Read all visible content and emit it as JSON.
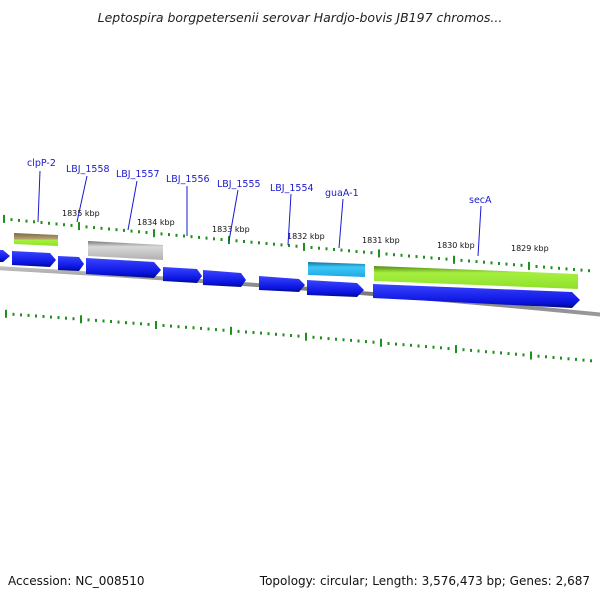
{
  "title": "Leptospira borgpetersenii serovar Hardjo-bovis JB197 chromos...",
  "footer": {
    "accession_label": "Accession:",
    "accession_value": "NC_008510",
    "topology_label": "Topology:",
    "topology_value": "circular;",
    "length_label": "Length:",
    "length_value": "3,576,473 bp;",
    "genes_label": "Genes:",
    "genes_value": "2,687"
  },
  "colors": {
    "backbone": "#7a7a7a",
    "tick": "#1f8f1f",
    "cds": "#0a14e0",
    "cds_dark": "#000a80",
    "gene_leader": "#1a1ad0",
    "clpP_top": "#b09050",
    "clpP_bottom": "#8fe02a",
    "grey_feature": "#b5b5b5",
    "guaA_feature": "#2ab8f0",
    "secA_feature": "#8fe02a"
  },
  "map": {
    "view_range_kbp": [
      1835.6,
      1828.6
    ],
    "kbp_ticks": [
      {
        "label": "1835 kbp",
        "kbp": 1835
      },
      {
        "label": "1834 kbp",
        "kbp": 1834
      },
      {
        "label": "1833 kbp",
        "kbp": 1833
      },
      {
        "label": "1832 kbp",
        "kbp": 1832
      },
      {
        "label": "1831 kbp",
        "kbp": 1831
      },
      {
        "label": "1830 kbp",
        "kbp": 1830
      },
      {
        "label": "1829 kbp",
        "kbp": 1829
      }
    ],
    "gene_labels": [
      {
        "label": "clpP-2"
      },
      {
        "label": "LBJ_1558"
      },
      {
        "label": "LBJ_1557"
      },
      {
        "label": "LBJ_1556"
      },
      {
        "label": "LBJ_1555"
      },
      {
        "label": "LBJ_1554"
      },
      {
        "label": "guaA-1"
      },
      {
        "label": "secA"
      }
    ]
  }
}
